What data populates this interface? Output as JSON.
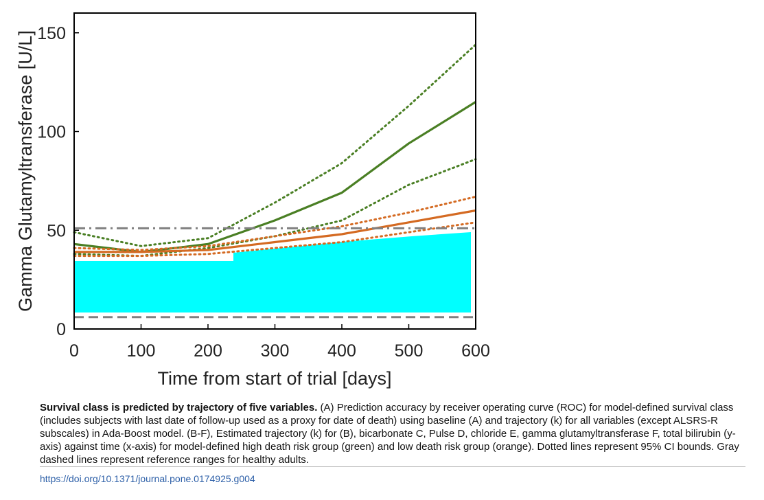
{
  "chart_data": {
    "type": "line",
    "xlabel": "Time from start of trial [days]",
    "ylabel": "Gamma Glutamyltransferase [U/L]",
    "xlim": [
      0,
      600
    ],
    "ylim": [
      0,
      160
    ],
    "xticks": [
      "0",
      "100",
      "200",
      "300",
      "400",
      "500",
      "600"
    ],
    "yticks": [
      "0",
      "50",
      "100",
      "150"
    ],
    "grid": false,
    "colors": {
      "high": "#4a7f24",
      "low": "#d46a22",
      "reference": "#808080",
      "overlay": "#00ffff"
    },
    "x": [
      0,
      100,
      200,
      300,
      400,
      500,
      600
    ],
    "series": [
      {
        "group": "high",
        "style": "solid",
        "values": [
          43,
          39,
          43,
          55,
          69,
          94,
          115
        ]
      },
      {
        "group": "high",
        "style": "dotted",
        "values": [
          49,
          42,
          46,
          64,
          84,
          113,
          144
        ]
      },
      {
        "group": "high",
        "style": "dotted",
        "values": [
          38,
          37,
          41,
          47,
          55,
          73,
          86
        ]
      },
      {
        "group": "low",
        "style": "solid",
        "values": [
          39,
          39,
          40,
          44,
          48,
          54,
          60
        ]
      },
      {
        "group": "low",
        "style": "dotted",
        "values": [
          41,
          40,
          42,
          47,
          52,
          59,
          67
        ]
      },
      {
        "group": "low",
        "style": "dotted",
        "values": [
          37,
          37,
          38,
          41,
          44,
          49,
          54
        ]
      }
    ],
    "reference_lines": [
      {
        "style": "dashdot",
        "value": 51
      },
      {
        "style": "dashed",
        "value": 6
      }
    ]
  },
  "caption": {
    "title": "Survival class is predicted by trajectory of five variables.",
    "body": " (A) Prediction accuracy by receiver operating curve (ROC) for model-defined survival class (includes subjects with last date of follow-up used as a proxy for date of death) using baseline (A) and trajectory (k) for all variables (except ALSRS-R subscales) in Ada-Boost model. (B-F), Estimated trajectory (k) for (B), bicarbonate C, Pulse D, chloride E, gamma glutamyltransferase F, total bilirubin (y-axis) against time (x-axis) for model-defined high death risk group (green) and low death risk group (orange). Dotted lines represent 95% CI bounds. Gray dashed lines represent reference ranges for healthy adults."
  },
  "doi": "https://doi.org/10.1371/journal.pone.0174925.g004"
}
